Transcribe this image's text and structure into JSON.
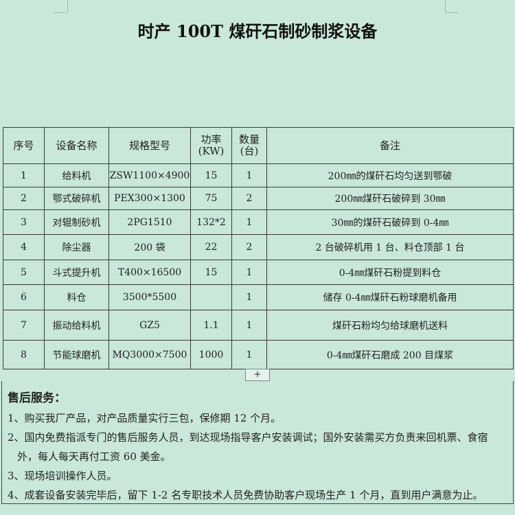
{
  "title": "时产 100T 煤矸石制砂制浆设备",
  "table": {
    "headers": [
      "序号",
      "设备名称",
      "规格型号",
      "功率(KW)",
      "数量(台)",
      "备注"
    ],
    "header_power": [
      "功率",
      "(KW)"
    ],
    "header_qty": [
      "数量",
      "(台)"
    ],
    "rows": [
      [
        "1",
        "给料机",
        "ZSW1100×4900",
        "15",
        "1",
        "200㎜的煤矸石均匀送到鄂破"
      ],
      [
        "2",
        "鄂式破碎机",
        "PEX300×1300",
        "75",
        "2",
        "200㎜煤矸石破碎到 30㎜"
      ],
      [
        "3",
        "对辊制砂机",
        "2PG1510",
        "132*2",
        "1",
        "30㎜的煤矸石破碎到 0-4㎜"
      ],
      [
        "4",
        "除尘器",
        "200 袋",
        "22",
        "2",
        "2 台破碎机用 1 台、料仓顶部 1 台"
      ],
      [
        "5",
        "斗式提升机",
        "T400×16500",
        "15",
        "1",
        "0-4㎜煤矸石粉提到料仓"
      ],
      [
        "6",
        "料仓",
        "3500*5500",
        "",
        "1",
        "储存 0-4㎜煤矸石粉球磨机备用"
      ],
      [
        "7",
        "振动给料机",
        "GZ5",
        "1.1",
        "1",
        "煤矸石粉均匀给球磨机送料"
      ],
      [
        "8",
        "节能球磨机",
        "MQ3000×7500",
        "1000",
        "1",
        "0-4㎜煤矸石磨成 200 目煤浆"
      ]
    ]
  },
  "expand_label": "+",
  "service": {
    "heading": "售后服务：",
    "items": [
      "1、购买我厂产品，对产品质量实行三包，保修期 12 个月。",
      "2、国内免费指派专门的售后服务人员，到达现场指导客户安装调试；国外安装需买方负责来回机票、食宿",
      "外，每人每天再付工资 60 美金。",
      "3、现场培训操作人员。",
      "4、成套设备安装完毕后，留下 1-2 名专职技术人员免费协助客户现场生产 1 个月，直到用户满意为止。"
    ]
  }
}
